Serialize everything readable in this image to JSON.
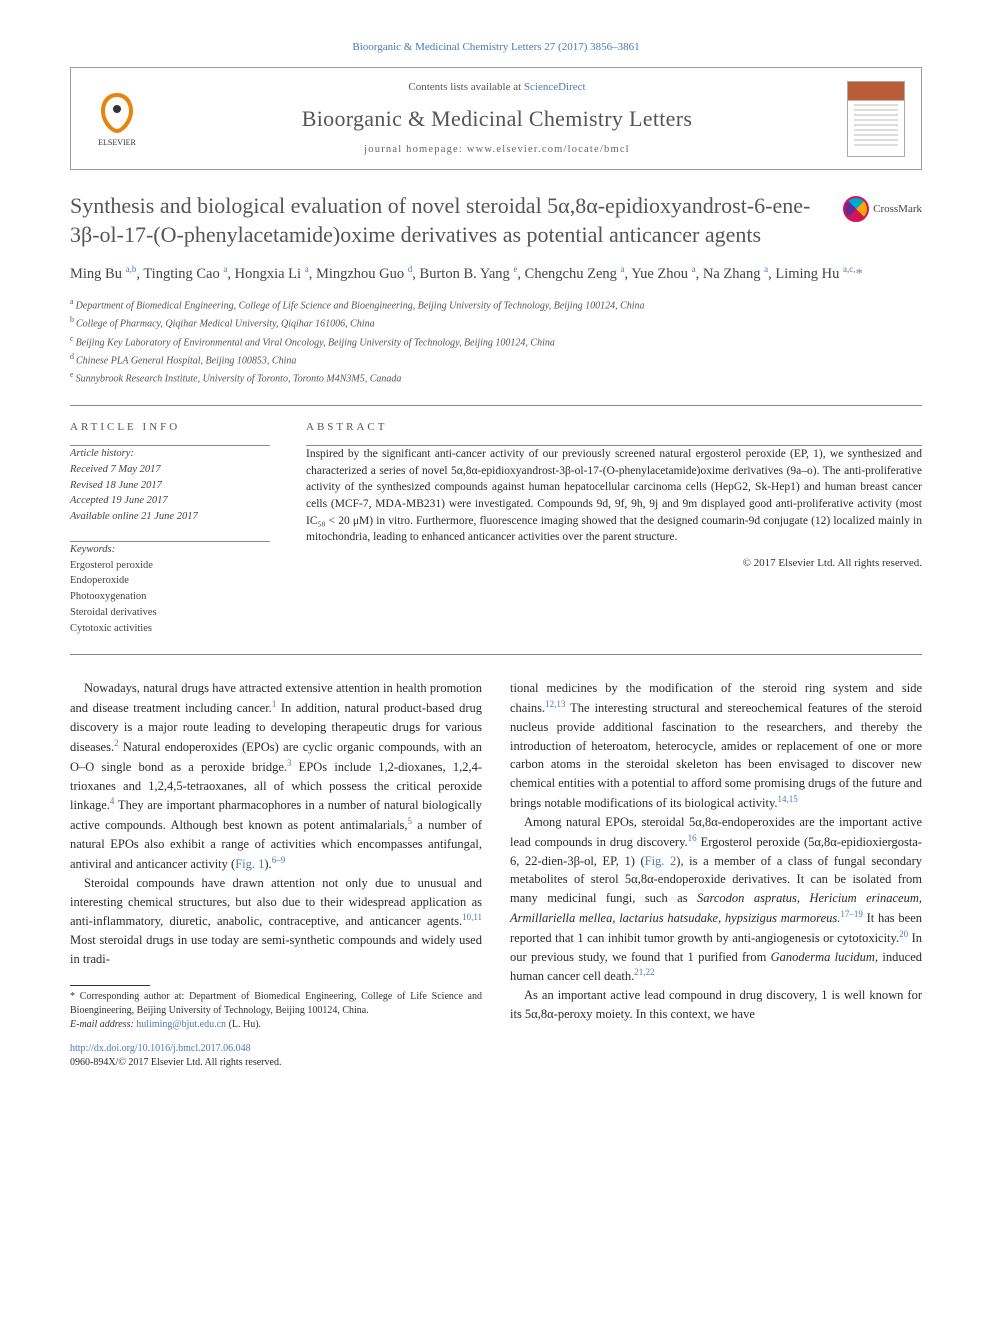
{
  "citation": "Bioorganic & Medicinal Chemistry Letters 27 (2017) 3856–3861",
  "header": {
    "contents_prefix": "Contents lists available at ",
    "contents_link": "ScienceDirect",
    "journal": "Bioorganic & Medicinal Chemistry Letters",
    "homepage_label": "journal homepage: ",
    "homepage_url": "www.elsevier.com/locate/bmcl",
    "publisher_logo": "ELSEVIER"
  },
  "crossmark": "CrossMark",
  "title": "Synthesis and biological evaluation of novel steroidal 5α,8α-epidioxyandrost-6-ene-3β-ol-17-(O-phenylacetamide)oxime derivatives as potential anticancer agents",
  "authors_html": "Ming Bu <sup>a,b</sup>, Tingting Cao <sup>a</sup>, Hongxia Li <sup>a</sup>, Mingzhou Guo <sup>d</sup>, Burton B. Yang <sup>e</sup>, Chengchu Zeng <sup>a</sup>, Yue Zhou <sup>a</sup>, Na Zhang <sup>a</sup>, Liming Hu <sup>a,c,</sup><span class='star'>*</span>",
  "affiliations": [
    {
      "sup": "a",
      "text": "Department of Biomedical Engineering, College of Life Science and Bioengineering, Beijing University of Technology, Beijing 100124, China"
    },
    {
      "sup": "b",
      "text": "College of Pharmacy, Qiqihar Medical University, Qiqihar 161006, China"
    },
    {
      "sup": "c",
      "text": "Beijing Key Laboratory of Environmental and Viral Oncology, Beijing University of Technology, Beijing 100124, China"
    },
    {
      "sup": "d",
      "text": "Chinese PLA General Hospital, Beijing 100853, China"
    },
    {
      "sup": "e",
      "text": "Sunnybrook Research Institute, University of Toronto, Toronto M4N3M5, Canada"
    }
  ],
  "info_heading": "ARTICLE INFO",
  "abstract_heading": "ABSTRACT",
  "history": {
    "label": "Article history:",
    "received": "Received 7 May 2017",
    "revised": "Revised 18 June 2017",
    "accepted": "Accepted 19 June 2017",
    "online": "Available online 21 June 2017"
  },
  "keywords": {
    "label": "Keywords:",
    "items": [
      "Ergosterol peroxide",
      "Endoperoxide",
      "Photooxygenation",
      "Steroidal derivatives",
      "Cytotoxic activities"
    ]
  },
  "abstract": "Inspired by the significant anti-cancer activity of our previously screened natural ergosterol peroxide (EP, 1), we synthesized and characterized a series of novel 5α,8α-epidioxyandrost-3β-ol-17-(O-phenylacetamide)oxime derivatives (9a–o). The anti-proliferative activity of the synthesized compounds against human hepatocellular carcinoma cells (HepG2, Sk-Hep1) and human breast cancer cells (MCF-7, MDA-MB231) were investigated. Compounds 9d, 9f, 9h, 9j and 9m displayed good anti-proliferative activity (most IC₅₀ < 20 μM) in vitro. Furthermore, fluorescence imaging showed that the designed coumarin-9d conjugate (12) localized mainly in mitochondria, leading to enhanced anticancer activities over the parent structure.",
  "copyright": "© 2017 Elsevier Ltd. All rights reserved.",
  "body": {
    "col1": {
      "p1_pre": "Nowadays, natural drugs have attracted extensive attention in health promotion and disease treatment including cancer.",
      "p1_post": " In addition, natural product-based drug discovery is a major route leading to developing therapeutic drugs for various diseases.",
      "p1_cont": " Natural endoperoxides (EPOs) are cyclic organic compounds, with an O–O single bond as a peroxide bridge.",
      "p1_cont2": " EPOs include 1,2-dioxanes, 1,2,4-trioxanes and 1,2,4,5-tetraoxanes, all of which possess the critical peroxide linkage.",
      "p1_cont3": " They are important pharmacophores in a number of natural biologically active compounds. Although best known as potent antimalarials,",
      "p1_cont4": " a number of natural EPOs also exhibit a range of activities which encompasses antifungal, antiviral and anticancer activity (",
      "fig1": "Fig. 1",
      "p1_end": ").",
      "ref69": "6–9",
      "p2_pre": "Steroidal compounds have drawn attention not only due to unusual and interesting chemical structures, but also due to their widespread application as anti-inflammatory, diuretic, anabolic, contraceptive, and anticancer agents.",
      "ref1011": "10,11",
      "p2_post": " Most steroidal drugs in use today are semi-synthetic compounds and widely used in tradi-"
    },
    "col2": {
      "p1_pre": "tional medicines by the modification of the steroid ring system and side chains.",
      "ref1213": "12,13",
      "p1_post": " The interesting structural and stereochemical features of the steroid nucleus provide additional fascination to the researchers, and thereby the introduction of heteroatom, heterocycle, amides or replacement of one or more carbon atoms in the steroidal skeleton has been envisaged to discover new chemical entities with a potential to afford some promising drugs of the future and brings notable modifications of its biological activity.",
      "ref1415": "14,15",
      "p2_pre": "Among natural EPOs, steroidal 5α,8α-endoperoxides are the important active lead compounds in drug discovery.",
      "ref16": "16",
      "p2_post": " Ergosterol peroxide (5α,8α-epidioxiergosta-6, 22-dien-3β-ol, EP, 1) (",
      "fig2": "Fig. 2",
      "p2_post2": "), is a member of a class of fungal secondary metabolites of sterol 5α,8α-endoperoxide derivatives. It can be isolated from many medicinal fungi, such as ",
      "fungi": "Sarcodon aspratus, Hericium erinaceum, Armillariella mellea, lactarius hatsudake, hypsizigus marmoreus.",
      "ref1719": "17–19",
      "p2_post3": " It has been reported that 1 can inhibit tumor growth by anti-angiogenesis or cytotoxicity.",
      "ref20": "20",
      "p2_post4": " In our previous study, we found that 1 purified from ",
      "ganoderma": "Ganoderma lucidum",
      "p2_post5": ", induced human cancer cell death.",
      "ref2122": "21,22",
      "p3": "As an important active lead compound in drug discovery, 1 is well known for its 5α,8α-peroxy moiety. In this context, we have"
    }
  },
  "footnotes": {
    "corr": "* Corresponding author at: Department of Biomedical Engineering, College of Life Science and Bioengineering, Beijing University of Technology, Beijing 100124, China.",
    "email_label": "E-mail address: ",
    "email": "huliming@bjut.edu.cn",
    "email_paren": " (L. Hu)."
  },
  "doi": {
    "url": "http://dx.doi.org/10.1016/j.bmcl.2017.06.048",
    "issn": "0960-894X/© 2017 Elsevier Ltd. All rights reserved."
  },
  "colors": {
    "link": "#4a7ab0",
    "text": "#2a2a2a",
    "muted": "#555555",
    "rule": "#888888"
  }
}
